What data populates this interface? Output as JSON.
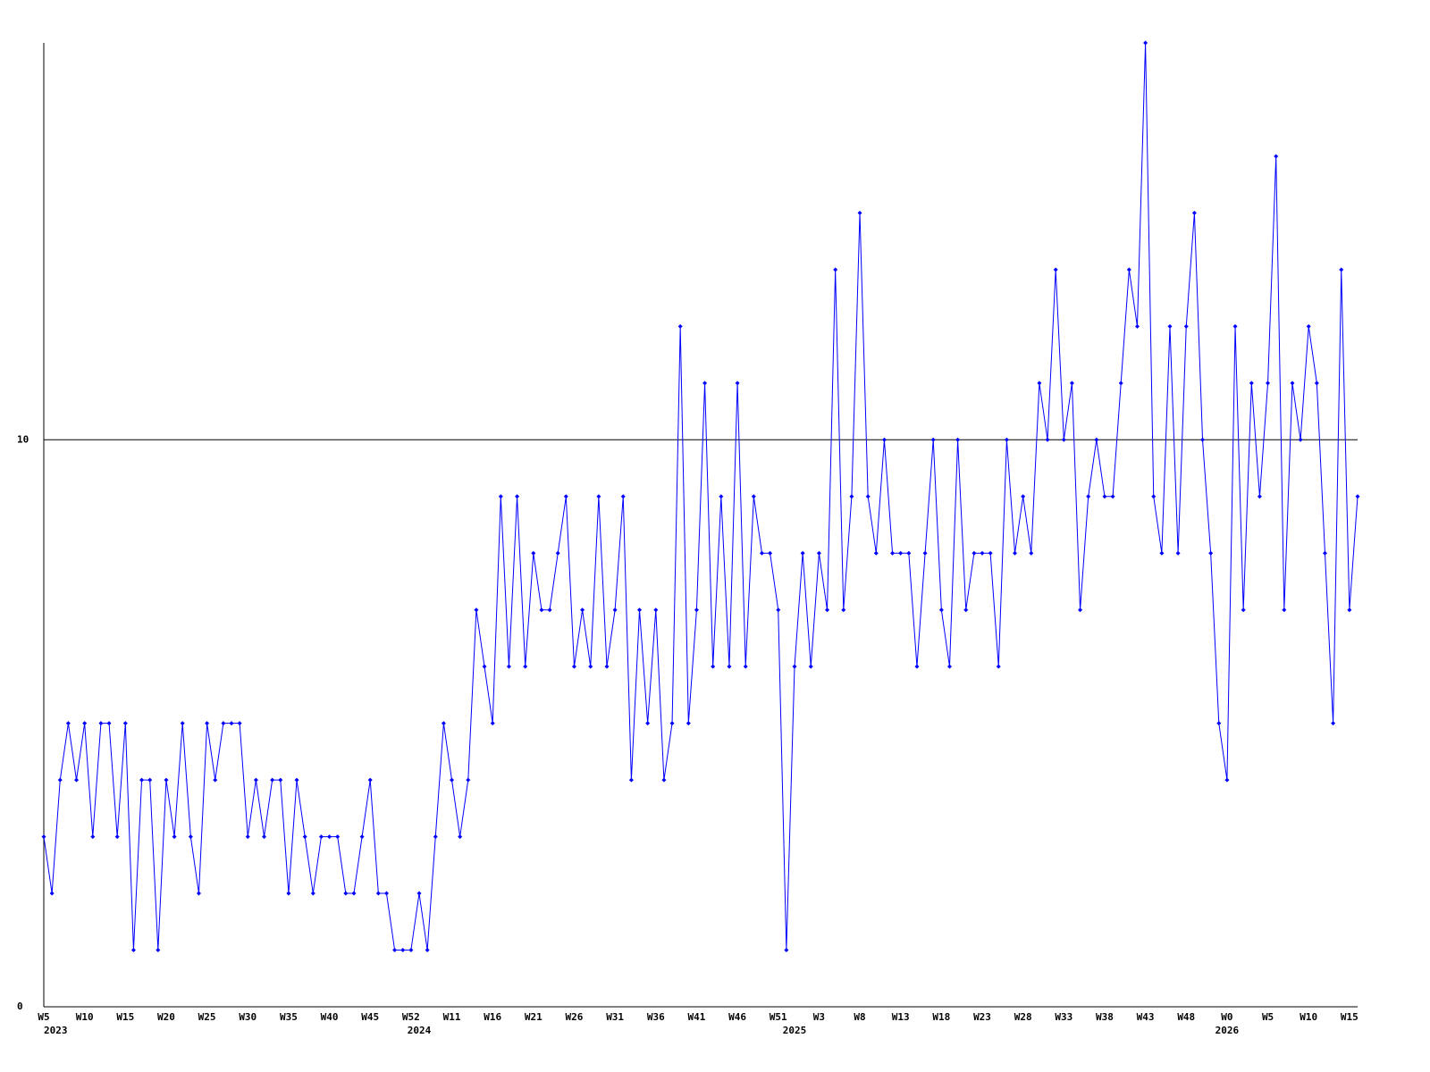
{
  "chart_data": {
    "type": "line",
    "categories": [
      "W5",
      null,
      null,
      null,
      null,
      "W10",
      null,
      null,
      null,
      null,
      "W15",
      null,
      null,
      null,
      null,
      "W20",
      null,
      null,
      null,
      null,
      "W25",
      null,
      null,
      null,
      null,
      "W30",
      null,
      null,
      null,
      null,
      "W35",
      null,
      null,
      null,
      null,
      "W40",
      null,
      null,
      null,
      null,
      "W45",
      null,
      null,
      null,
      null,
      "W52",
      null,
      null,
      null,
      null,
      "W11",
      null,
      null,
      null,
      null,
      "W16",
      null,
      null,
      null,
      null,
      "W21",
      null,
      null,
      null,
      null,
      "W26",
      null,
      null,
      null,
      null,
      "W31",
      null,
      null,
      null,
      null,
      "W36",
      null,
      null,
      null,
      null,
      "W41",
      null,
      null,
      null,
      null,
      "W46",
      null,
      null,
      null,
      null,
      "W51",
      null,
      null,
      null,
      null,
      "W3",
      null,
      null,
      null,
      null,
      "W8",
      null,
      null,
      null,
      null,
      "W13",
      null,
      null,
      null,
      null,
      "W18",
      null,
      null,
      null,
      null,
      "W23",
      null,
      null,
      null,
      null,
      "W28",
      null,
      null,
      null,
      null,
      "W33",
      null,
      null,
      null,
      null,
      "W38",
      null,
      null,
      null,
      null,
      "W43",
      null,
      null,
      null,
      null,
      "W48",
      null,
      null,
      null,
      null,
      "W0",
      null,
      null,
      null,
      null,
      "W5",
      null,
      null,
      null,
      null,
      "W10",
      null,
      null,
      null,
      null,
      "W15",
      null
    ],
    "years": [
      "2023",
      null,
      null,
      null,
      null,
      null,
      null,
      null,
      null,
      null,
      null,
      null,
      null,
      null,
      null,
      null,
      null,
      null,
      null,
      null,
      null,
      null,
      null,
      null,
      null,
      null,
      null,
      null,
      null,
      null,
      null,
      null,
      null,
      null,
      null,
      null,
      null,
      null,
      null,
      null,
      null,
      null,
      null,
      null,
      null,
      null,
      "2024",
      null,
      null,
      null,
      null,
      null,
      null,
      null,
      null,
      null,
      null,
      null,
      null,
      null,
      null,
      null,
      null,
      null,
      null,
      null,
      null,
      null,
      null,
      null,
      null,
      null,
      null,
      null,
      null,
      null,
      null,
      null,
      null,
      null,
      null,
      null,
      null,
      null,
      null,
      null,
      null,
      null,
      null,
      null,
      null,
      null,
      "2025",
      null,
      null,
      null,
      null,
      null,
      null,
      null,
      null,
      null,
      null,
      null,
      null,
      null,
      null,
      null,
      null,
      null,
      null,
      null,
      null,
      null,
      null,
      null,
      null,
      null,
      null,
      null,
      null,
      null,
      null,
      null,
      null,
      null,
      null,
      null,
      null,
      null,
      null,
      null,
      null,
      null,
      null,
      null,
      null,
      null,
      null,
      null,
      null,
      null,
      null,
      null,
      null,
      "2026",
      null,
      null,
      null,
      null,
      null,
      null,
      null,
      null,
      null,
      null,
      null,
      null,
      null,
      null,
      null,
      null
    ],
    "series": [
      {
        "color": "#0000ff",
        "values": [
          3,
          2,
          4,
          5,
          4,
          5,
          3,
          5,
          5,
          3,
          5,
          1,
          4,
          4,
          1,
          4,
          3,
          5,
          3,
          2,
          5,
          4,
          5,
          5,
          5,
          3,
          4,
          3,
          4,
          4,
          2,
          4,
          3,
          2,
          3,
          3,
          3,
          2,
          2,
          3,
          4,
          2,
          2,
          1,
          1,
          1,
          2,
          1,
          3,
          5,
          4,
          3,
          4,
          7,
          6,
          5,
          9,
          6,
          9,
          6,
          8,
          7,
          7,
          8,
          9,
          6,
          7,
          6,
          9,
          6,
          7,
          9,
          4,
          7,
          5,
          7,
          4,
          5,
          12,
          5,
          7,
          11,
          6,
          9,
          6,
          11,
          6,
          9,
          8,
          8,
          7,
          1,
          6,
          8,
          6,
          8,
          7,
          13,
          7,
          9,
          14,
          9,
          8,
          10,
          8,
          8,
          8,
          6,
          8,
          10,
          7,
          6,
          10,
          7,
          8,
          8,
          8,
          6,
          10,
          8,
          9,
          8,
          11,
          10,
          13,
          10,
          11,
          7,
          9,
          10,
          9,
          9,
          11,
          13,
          12,
          17,
          9,
          8,
          12,
          8,
          12,
          14,
          10,
          8,
          5,
          4,
          12,
          7,
          11,
          9,
          11,
          15,
          7,
          11,
          10,
          12,
          11,
          8,
          5,
          13,
          7,
          9
        ]
      }
    ],
    "ylim": [
      0,
      17
    ],
    "yticks": [
      0,
      10
    ],
    "grid": true
  }
}
